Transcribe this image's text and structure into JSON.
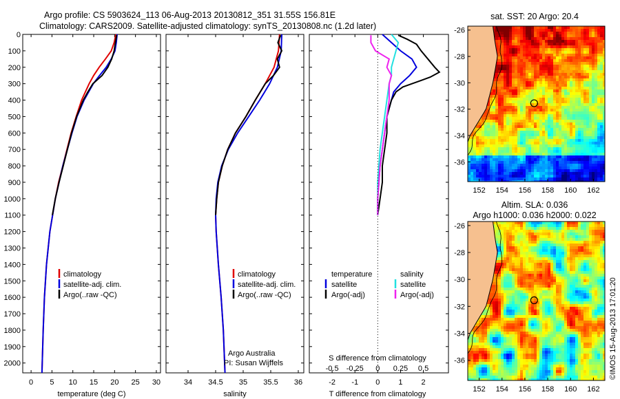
{
  "header": {
    "line1": "Argo profile: CS 5903624_113 06-Aug-2013 20130812_351 31.55S 156.81E",
    "line2": "Climatology: CARS2009. Satellite-adjusted climatology: synTS_20130808.nc (1.2d later)"
  },
  "colors": {
    "climatology": "#e00000",
    "satellite": "#0000dd",
    "argo": "#000000",
    "sal_satellite": "#22e0e0",
    "sal_argo": "#ee22ee",
    "land": "#f6c08f"
  },
  "chart_data": [
    {
      "type": "line",
      "panel": "temperature",
      "xlabel": "temperature (deg C)",
      "xlim": [
        -2,
        31
      ],
      "xticks": [
        "0",
        "5",
        "10",
        "15",
        "20",
        "25",
        "30"
      ],
      "xtick_values": [
        0,
        5,
        10,
        15,
        20,
        25,
        30
      ],
      "ylim": [
        2060,
        0
      ],
      "yticks": [
        "0",
        "100",
        "200",
        "300",
        "400",
        "500",
        "600",
        "700",
        "800",
        "900",
        "1000",
        "1100",
        "1200",
        "1300",
        "1400",
        "1500",
        "1600",
        "1700",
        "1800",
        "1900",
        "2000"
      ],
      "ytick_values": [
        0,
        100,
        200,
        300,
        400,
        500,
        600,
        700,
        800,
        900,
        1000,
        1100,
        1200,
        1300,
        1400,
        1500,
        1600,
        1700,
        1800,
        1900,
        2000
      ],
      "legend": [
        "climatology",
        "satellite-adj. clim.",
        "Argo(..raw -QC)"
      ],
      "series": [
        {
          "name": "climatology",
          "color": "#e00000",
          "depth": [
            0,
            50,
            100,
            150,
            200,
            250,
            300,
            400,
            500,
            600,
            700,
            800,
            900,
            1000,
            1200,
            1400,
            1600,
            1800,
            2060
          ],
          "values": [
            20.3,
            19.9,
            19.2,
            17.8,
            16.3,
            15.0,
            13.9,
            12.1,
            10.8,
            9.6,
            8.6,
            7.6,
            6.6,
            5.8,
            4.5,
            3.7,
            3.2,
            2.9,
            2.6
          ]
        },
        {
          "name": "satellite-adj. clim.",
          "color": "#0000dd",
          "depth": [
            0,
            50,
            100,
            150,
            200,
            250,
            300,
            400,
            500,
            600,
            700,
            800,
            900,
            1000,
            1200,
            1400,
            1600,
            1800,
            2060
          ],
          "values": [
            20.6,
            20.4,
            20.1,
            19.2,
            18.0,
            16.4,
            14.9,
            12.7,
            11.0,
            9.8,
            8.7,
            7.6,
            6.7,
            5.8,
            4.5,
            3.7,
            3.2,
            2.9,
            2.6
          ]
        },
        {
          "name": "Argo(..raw -QC)",
          "color": "#000000",
          "depth": [
            5,
            50,
            100,
            150,
            200,
            250,
            300,
            350,
            400,
            500,
            600,
            700,
            800,
            900,
            1000,
            1100
          ],
          "values": [
            20.5,
            20.2,
            19.9,
            19.3,
            18.4,
            17.0,
            14.8,
            13.6,
            12.5,
            10.9,
            9.7,
            8.7,
            7.7,
            6.7,
            5.8,
            5.1
          ]
        }
      ]
    },
    {
      "type": "line",
      "panel": "salinity",
      "xlabel": "salinity",
      "xlim": [
        33.6,
        36.1
      ],
      "xticks": [
        "34",
        "34.5",
        "35",
        "35.5",
        "36"
      ],
      "xtick_values": [
        34,
        34.5,
        35,
        35.5,
        36
      ],
      "ylim": [
        2060,
        0
      ],
      "legend": [
        "climatology",
        "satellite-adj. clim.",
        "Argo(..raw -QC)"
      ],
      "note": [
        "Argo Australia",
        "PI: Susan Wijffels"
      ],
      "series": [
        {
          "name": "climatology",
          "color": "#e00000",
          "depth": [
            0,
            100,
            200,
            300,
            400,
            500,
            600,
            700,
            800,
            900,
            1000,
            1100,
            1200,
            1400,
            1600,
            1800,
            2060
          ],
          "values": [
            35.66,
            35.64,
            35.56,
            35.4,
            35.22,
            35.05,
            34.86,
            34.72,
            34.62,
            34.55,
            34.52,
            34.5,
            34.51,
            34.55,
            34.6,
            34.64,
            34.67
          ]
        },
        {
          "name": "satellite-adj. clim.",
          "color": "#0000dd",
          "depth": [
            0,
            100,
            200,
            300,
            400,
            500,
            600,
            700,
            800,
            900,
            1000,
            1100,
            1200,
            1400,
            1600,
            1800,
            2060
          ],
          "values": [
            35.7,
            35.69,
            35.62,
            35.48,
            35.3,
            35.1,
            34.9,
            34.73,
            34.61,
            34.54,
            34.51,
            34.5,
            34.51,
            34.55,
            34.6,
            34.64,
            34.67
          ]
        },
        {
          "name": "Argo(..raw -QC)",
          "color": "#000000",
          "depth": [
            5,
            50,
            100,
            150,
            200,
            250,
            300,
            400,
            500,
            600,
            700,
            800,
            900,
            1000,
            1100
          ],
          "values": [
            35.68,
            35.63,
            35.7,
            35.62,
            35.66,
            35.55,
            35.4,
            35.22,
            35.05,
            34.86,
            34.72,
            34.62,
            34.55,
            34.52,
            34.5
          ]
        }
      ]
    },
    {
      "type": "line",
      "panel": "difference",
      "xlabel": "T difference from climatology",
      "xlabel_top": "S difference from climatology",
      "xlim": [
        -3,
        3.1
      ],
      "xticks": [
        "-2",
        "-1",
        "0",
        "1",
        "2"
      ],
      "xtick_values": [
        -2,
        -1,
        0,
        1,
        2
      ],
      "sticks": [
        "-0.5",
        "-0.25",
        "0",
        "0.25",
        "0.5"
      ],
      "stick_values": [
        -2,
        -1,
        0,
        1,
        2
      ],
      "ylim": [
        2060,
        0
      ],
      "legend_temperature": [
        "temperature",
        "satellite",
        "Argo(-adj)"
      ],
      "legend_salinity": [
        "salinity",
        "satellite",
        "Argo(-adj)"
      ],
      "series": [
        {
          "name": "satellite",
          "color": "#0000dd",
          "depth": [
            0,
            50,
            100,
            150,
            200,
            250,
            300,
            350,
            400,
            500,
            600,
            700,
            800,
            900,
            1000,
            1100
          ],
          "values": [
            0.2,
            0.6,
            1.0,
            1.5,
            1.7,
            1.4,
            1.0,
            0.7,
            0.6,
            0.4,
            0.3,
            0.2,
            0.1,
            0.05,
            0.0,
            0.0
          ]
        },
        {
          "name": "Argo(-adj)",
          "color": "#000000",
          "depth": [
            5,
            30,
            60,
            100,
            150,
            200,
            230,
            260,
            280,
            300,
            320,
            350,
            400,
            500,
            600,
            700,
            800,
            900,
            1000,
            1100
          ],
          "values": [
            0.9,
            1.3,
            1.7,
            1.9,
            2.2,
            2.5,
            2.7,
            2.3,
            1.9,
            1.5,
            1.1,
            0.8,
            0.6,
            0.4,
            0.4,
            0.3,
            0.2,
            0.2,
            0.1,
            0.0
          ]
        },
        {
          "name": "satellite (S)",
          "color": "#22e0e0",
          "depth": [
            0,
            50,
            100,
            150,
            200,
            250,
            300,
            400,
            500,
            600,
            700,
            800,
            900,
            1000,
            1100
          ],
          "values": [
            0.6,
            0.9,
            0.8,
            0.7,
            0.6,
            0.6,
            0.5,
            0.4,
            0.3,
            0.2,
            0.1,
            0.05,
            0.0,
            0.0,
            0.0
          ]
        },
        {
          "name": "Argo(-adj) (S)",
          "color": "#ee22ee",
          "depth": [
            5,
            50,
            100,
            150,
            200,
            250,
            300,
            400,
            500,
            600,
            700,
            800,
            900,
            1000,
            1100
          ],
          "values": [
            -0.3,
            -0.3,
            -0.1,
            0.5,
            0.4,
            0.6,
            0.5,
            0.5,
            0.4,
            0.3,
            0.2,
            0.1,
            0.05,
            0.0,
            0.0
          ]
        }
      ]
    },
    {
      "type": "heatmap",
      "panel": "sst-map",
      "title": "sat. SST: 20 Argo: 20.4",
      "xlim": [
        151,
        163
      ],
      "ylim": [
        -37.5,
        -25.7
      ],
      "xticks": [
        "152",
        "154",
        "156",
        "158",
        "160",
        "162"
      ],
      "xtick_values": [
        152,
        154,
        156,
        158,
        160,
        162
      ],
      "yticks": [
        "-26",
        "-28",
        "-30",
        "-32",
        "-34",
        "-36"
      ],
      "ytick_values": [
        -26,
        -28,
        -30,
        -32,
        -34,
        -36
      ],
      "argo_position": [
        156.81,
        -31.55
      ]
    },
    {
      "type": "heatmap",
      "panel": "sla-map",
      "title": "Altim. SLA: 0.036",
      "subtitle": "Argo h1000: 0.036 h2000: 0.022",
      "xlim": [
        151,
        163
      ],
      "ylim": [
        -37.5,
        -25.7
      ],
      "xticks": [
        "152",
        "154",
        "156",
        "158",
        "160",
        "162"
      ],
      "xtick_values": [
        152,
        154,
        156,
        158,
        160,
        162
      ],
      "yticks": [
        "-26",
        "-28",
        "-30",
        "-32",
        "-34",
        "-36"
      ],
      "ytick_values": [
        -26,
        -28,
        -30,
        -32,
        -34,
        -36
      ],
      "argo_position": [
        156.81,
        -31.55
      ]
    }
  ],
  "footer": {
    "credit": "©IMOS 15-Aug-2013 17:01:20"
  }
}
